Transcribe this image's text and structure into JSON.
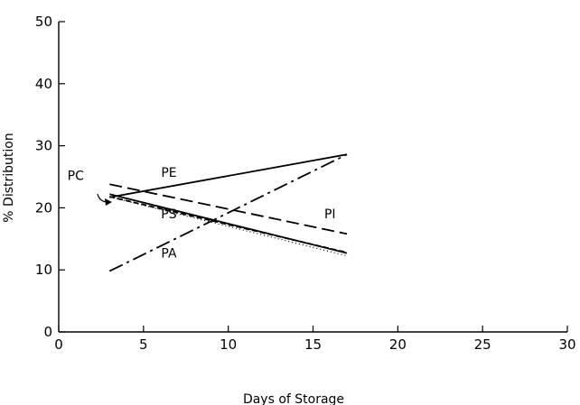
{
  "chart_data": {
    "type": "line",
    "title": "",
    "xlabel": "Days of Storage",
    "ylabel": "% Distribution",
    "xlim": [
      0,
      30
    ],
    "ylim": [
      0,
      50
    ],
    "x_ticks": [
      0,
      5,
      10,
      15,
      20,
      25,
      30
    ],
    "y_ticks": [
      0,
      10,
      20,
      30,
      40,
      50
    ],
    "grid": false,
    "series": [
      {
        "name": "PE",
        "style": "solid",
        "x": [
          3,
          17
        ],
        "y": [
          21.7,
          28.6
        ]
      },
      {
        "name": "PI",
        "style": "long-dash",
        "x": [
          3,
          17
        ],
        "y": [
          23.8,
          15.8
        ]
      },
      {
        "name": "PC",
        "style": "solid-dotted",
        "x": [
          3,
          17
        ],
        "y": [
          22.2,
          12.7
        ]
      },
      {
        "name": "PS",
        "style": "short-dash",
        "x": [
          3,
          17
        ],
        "y": [
          21.8,
          12.8
        ]
      },
      {
        "name": "PA",
        "style": "dash-dot",
        "x": [
          3,
          17
        ],
        "y": [
          9.8,
          28.6
        ]
      }
    ]
  }
}
